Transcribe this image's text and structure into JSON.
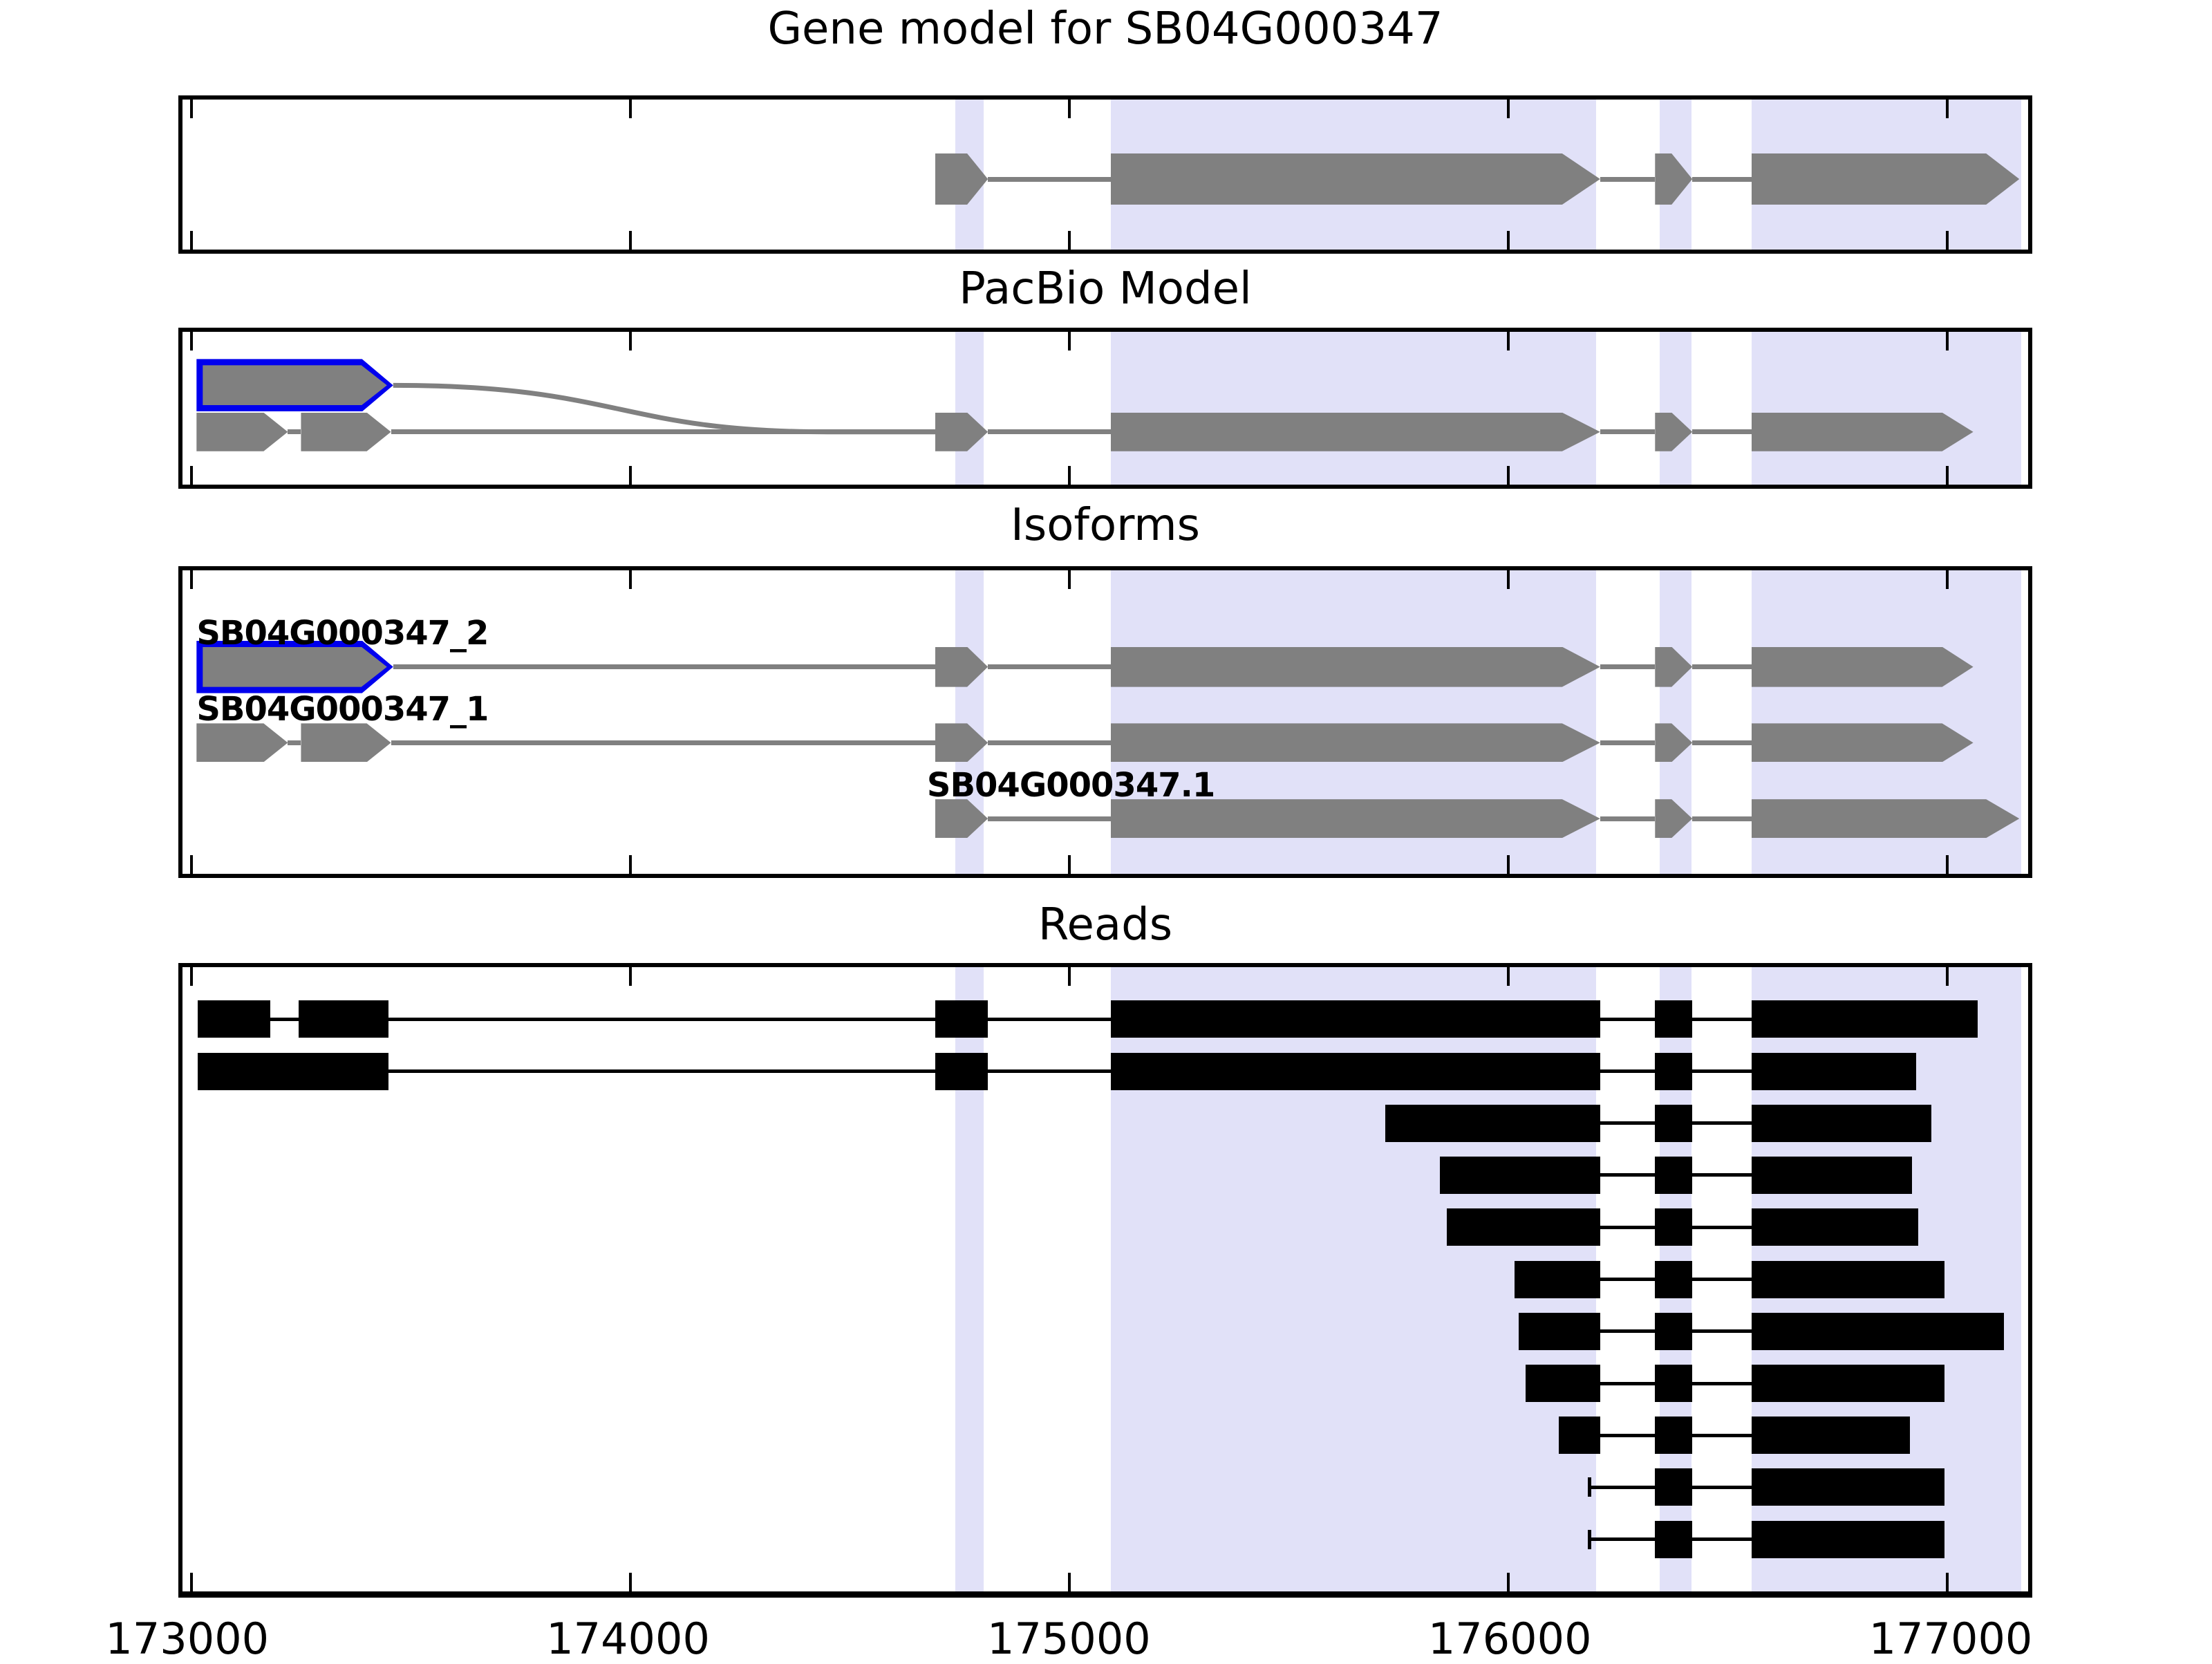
{
  "chart_data": {
    "type": "genome-tracks",
    "figure_title": "Gene model for SB04G000347",
    "gene_id": "SB04G000347",
    "axis": {
      "start": 172980,
      "end": 177185,
      "ticks": [
        {
          "value": 173000,
          "label": "173000"
        },
        {
          "value": 174000,
          "label": "174000"
        },
        {
          "value": 175000,
          "label": "175000"
        },
        {
          "value": 176000,
          "label": "176000"
        },
        {
          "value": 177000,
          "label": "177000"
        }
      ]
    },
    "highlight_bands": [
      {
        "start": 174740,
        "end": 174805
      },
      {
        "start": 175095,
        "end": 176200
      },
      {
        "start": 176345,
        "end": 176418
      },
      {
        "start": 176555,
        "end": 177170
      }
    ],
    "colors": {
      "band": "#e1e1f8",
      "model_fill": "#808080",
      "model_line": "#808080",
      "read_fill": "#000000",
      "read_line": "#000000",
      "highlight_outline": "#0000ee",
      "panel_border": "#000000",
      "background": "#ffffff",
      "text": "#000000"
    },
    "panels": [
      {
        "id": "gene_model",
        "title": "Gene model for SB04G000347",
        "rows": [
          {
            "kind": "model",
            "y": 0.53,
            "exon_h": 74,
            "exons": [
              {
                "s": 174695,
                "e": 174815,
                "taper": 30
              },
              {
                "s": 175095,
                "e": 176210,
                "taper": 55
              },
              {
                "s": 176335,
                "e": 176420,
                "taper": 30
              },
              {
                "s": 176555,
                "e": 177165,
                "taper": 48
              }
            ]
          }
        ]
      },
      {
        "id": "pacbio",
        "title": "PacBio Model",
        "rows": [
          {
            "kind": "model",
            "y": 0.35,
            "exon_h": 58,
            "exons": [
              {
                "s": 173012,
                "e": 173460,
                "taper": 45,
                "highlight": true
              }
            ]
          },
          {
            "kind": "model",
            "y": 0.655,
            "exon_h": 56,
            "exons": [
              {
                "s": 173012,
                "e": 173220,
                "taper": 35
              },
              {
                "s": 173250,
                "e": 173455,
                "taper": 35
              },
              {
                "s": 174695,
                "e": 174815,
                "taper": 30
              },
              {
                "s": 175095,
                "e": 176210,
                "taper": 55
              },
              {
                "s": 176335,
                "e": 176420,
                "taper": 30
              },
              {
                "s": 176555,
                "e": 177060,
                "taper": 45
              }
            ]
          }
        ],
        "connector": {
          "from_bp": 173460,
          "from_row": 0,
          "flat_bp": 174450,
          "join_bp": 174695,
          "to_row": 1
        }
      },
      {
        "id": "isoforms",
        "title": "Isoforms",
        "rows": [
          {
            "kind": "model",
            "y": 0.318,
            "exon_h": 58,
            "label": "SB04G000347_2",
            "label_bp": 173012,
            "exons": [
              {
                "s": 173012,
                "e": 173460,
                "taper": 45,
                "highlight": true
              },
              {
                "s": 174695,
                "e": 174815,
                "taper": 30
              },
              {
                "s": 175095,
                "e": 176210,
                "taper": 55
              },
              {
                "s": 176335,
                "e": 176420,
                "taper": 30
              },
              {
                "s": 176555,
                "e": 177060,
                "taper": 45
              }
            ]
          },
          {
            "kind": "model",
            "y": 0.568,
            "exon_h": 56,
            "label": "SB04G000347_1",
            "label_bp": 173012,
            "exons": [
              {
                "s": 173012,
                "e": 173220,
                "taper": 35
              },
              {
                "s": 173250,
                "e": 173455,
                "taper": 35
              },
              {
                "s": 174695,
                "e": 174815,
                "taper": 30
              },
              {
                "s": 175095,
                "e": 176210,
                "taper": 55
              },
              {
                "s": 176335,
                "e": 176420,
                "taper": 30
              },
              {
                "s": 176555,
                "e": 177060,
                "taper": 45
              }
            ]
          },
          {
            "kind": "model",
            "y": 0.818,
            "exon_h": 56,
            "label": "SB04G000347.1",
            "label_bp": 174676,
            "exons": [
              {
                "s": 174695,
                "e": 174815,
                "taper": 30
              },
              {
                "s": 175095,
                "e": 176210,
                "taper": 55
              },
              {
                "s": 176335,
                "e": 176420,
                "taper": 30
              },
              {
                "s": 176555,
                "e": 177165,
                "taper": 48
              }
            ]
          }
        ]
      },
      {
        "id": "reads",
        "title": "Reads",
        "rows": [
          {
            "kind": "read",
            "y": 0.0833,
            "exon_h": 54,
            "exons": [
              {
                "s": 173015,
                "e": 173180
              },
              {
                "s": 173245,
                "e": 173450
              },
              {
                "s": 174695,
                "e": 174815
              },
              {
                "s": 175095,
                "e": 176210
              },
              {
                "s": 176335,
                "e": 176420
              },
              {
                "s": 176555,
                "e": 177070
              }
            ]
          },
          {
            "kind": "read",
            "y": 0.1667,
            "exon_h": 54,
            "exons": [
              {
                "s": 173015,
                "e": 173450
              },
              {
                "s": 174695,
                "e": 174815
              },
              {
                "s": 175095,
                "e": 176210
              },
              {
                "s": 176335,
                "e": 176420
              },
              {
                "s": 176555,
                "e": 176930
              }
            ]
          },
          {
            "kind": "read",
            "y": 0.25,
            "exon_h": 54,
            "exons": [
              {
                "s": 175720,
                "e": 176210
              },
              {
                "s": 176335,
                "e": 176420
              },
              {
                "s": 176555,
                "e": 176965
              }
            ]
          },
          {
            "kind": "read",
            "y": 0.3333,
            "exon_h": 54,
            "exons": [
              {
                "s": 175845,
                "e": 176210
              },
              {
                "s": 176335,
                "e": 176420
              },
              {
                "s": 176555,
                "e": 176920
              }
            ]
          },
          {
            "kind": "read",
            "y": 0.4167,
            "exon_h": 54,
            "exons": [
              {
                "s": 175860,
                "e": 176210
              },
              {
                "s": 176335,
                "e": 176420
              },
              {
                "s": 176555,
                "e": 176935
              }
            ]
          },
          {
            "kind": "read",
            "y": 0.5,
            "exon_h": 54,
            "exons": [
              {
                "s": 176015,
                "e": 176210
              },
              {
                "s": 176335,
                "e": 176420
              },
              {
                "s": 176555,
                "e": 176995
              }
            ]
          },
          {
            "kind": "read",
            "y": 0.5833,
            "exon_h": 54,
            "exons": [
              {
                "s": 176025,
                "e": 176210
              },
              {
                "s": 176335,
                "e": 176420
              },
              {
                "s": 176555,
                "e": 177130
              }
            ]
          },
          {
            "kind": "read",
            "y": 0.6667,
            "exon_h": 54,
            "exons": [
              {
                "s": 176040,
                "e": 176210
              },
              {
                "s": 176335,
                "e": 176420
              },
              {
                "s": 176555,
                "e": 176995
              }
            ]
          },
          {
            "kind": "read",
            "y": 0.75,
            "exon_h": 54,
            "exons": [
              {
                "s": 176115,
                "e": 176210
              },
              {
                "s": 176335,
                "e": 176420
              },
              {
                "s": 176555,
                "e": 176915
              }
            ]
          },
          {
            "kind": "read",
            "y": 0.8333,
            "exon_h": 54,
            "lead_tick": 176185,
            "exons": [
              {
                "s": 176335,
                "e": 176420
              },
              {
                "s": 176555,
                "e": 176995
              }
            ]
          },
          {
            "kind": "read",
            "y": 0.9167,
            "exon_h": 54,
            "lead_tick": 176185,
            "exons": [
              {
                "s": 176335,
                "e": 176420
              },
              {
                "s": 176555,
                "e": 176995
              }
            ]
          }
        ]
      }
    ]
  }
}
